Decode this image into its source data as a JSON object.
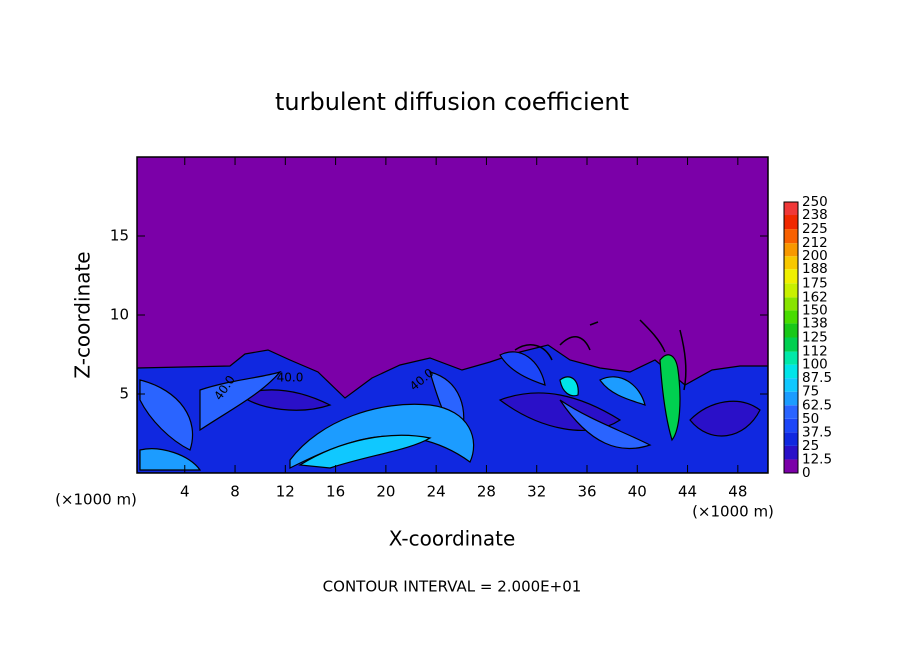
{
  "chart_data": {
    "type": "contour",
    "title": "turbulent diffusion coefficient",
    "x_label": "X-coordinate",
    "y_label": "Z-coordinate",
    "x_unit_label": "(×1000 m)",
    "y_unit_label": "(×1000 m)",
    "footer": "CONTOUR INTERVAL = 2.000E+01",
    "xlim": [
      0.2,
      50.4
    ],
    "ylim": [
      0,
      20
    ],
    "xticks": [
      4,
      8,
      12,
      16,
      20,
      24,
      28,
      32,
      36,
      40,
      44,
      48
    ],
    "yticks": [
      5,
      10,
      15
    ],
    "colorbar": {
      "levels": [
        0,
        12.5,
        25,
        37.5,
        50,
        62.5,
        75,
        87.5,
        100,
        112,
        125,
        138,
        150,
        162,
        175,
        188,
        200,
        212,
        225,
        238,
        250
      ],
      "colors": [
        "#7b00a8",
        "#2a10c8",
        "#1028e0",
        "#1c46f8",
        "#2a64ff",
        "#1c9cff",
        "#10c8ff",
        "#00e4e8",
        "#00e8a8",
        "#00d050",
        "#18c818",
        "#48dc00",
        "#88e400",
        "#c8f000",
        "#f0f000",
        "#f8c800",
        "#f89800",
        "#f86000",
        "#f02800",
        "#f03838",
        "#f08888"
      ]
    },
    "contour_labels": [
      "40.0",
      "40.0",
      "40.0"
    ]
  }
}
